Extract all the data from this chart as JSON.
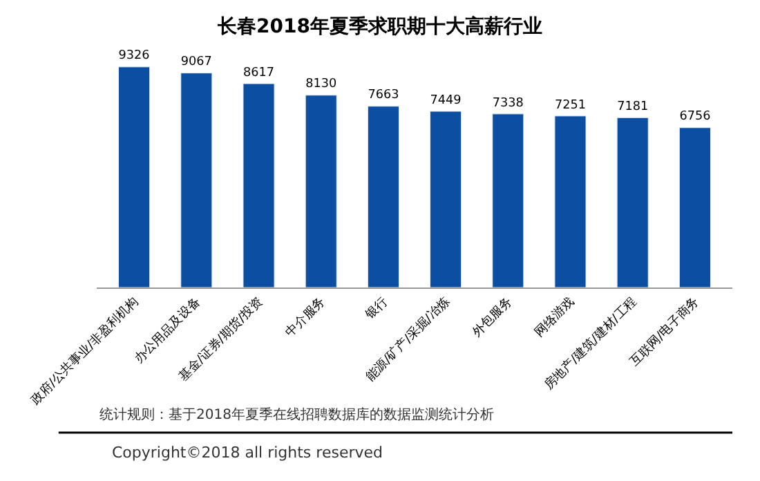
{
  "chart_data": {
    "type": "bar",
    "title": "长春2018年夏季求职期十大高薪行业",
    "categories": [
      "政府/公共事业/非盈利机构",
      "办公用品及设备",
      "基金/证券/期货/投资",
      "中介服务",
      "银行",
      "能源/矿产/采掘/冶炼",
      "外包服务",
      "网络游戏",
      "房地产/建筑/建材/工程",
      "互联网/电子商务"
    ],
    "values": [
      9326,
      9067,
      8617,
      8130,
      7663,
      7449,
      7338,
      7251,
      7181,
      6756
    ],
    "color": "#0b4ea2",
    "tick_labels": "x",
    "data_labels": true,
    "annotations": [
      "统计规则：基于2018年夏季在线招聘数据库的数据监测统计分析",
      "Copyright©2018 all rights reserved"
    ]
  }
}
